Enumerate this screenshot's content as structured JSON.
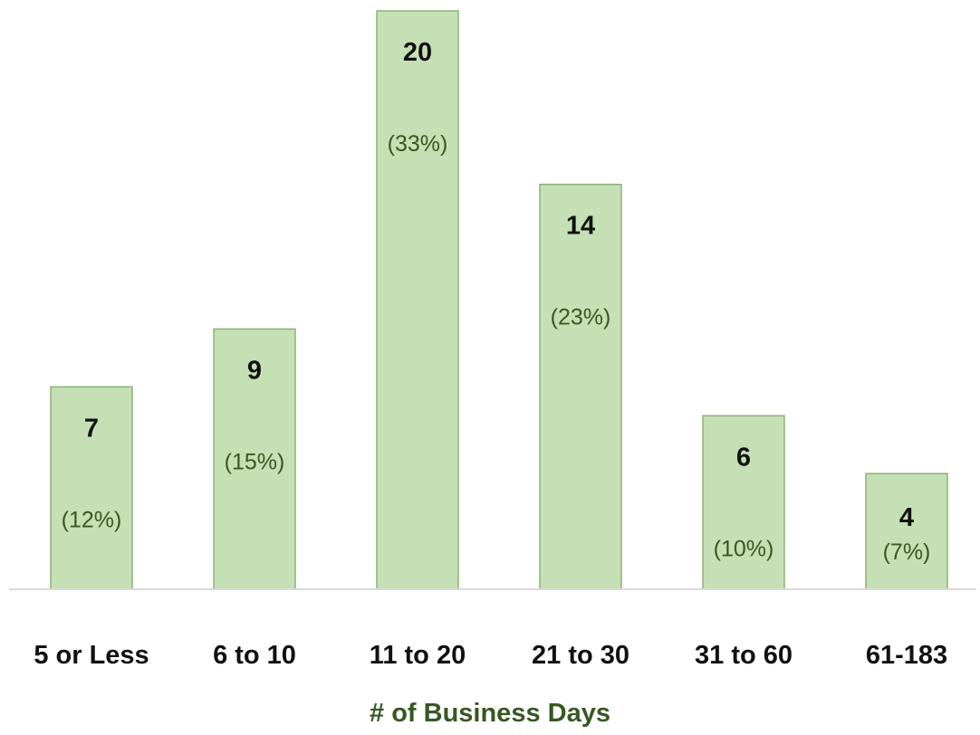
{
  "chart_data": {
    "type": "bar",
    "categories": [
      "5 or Less",
      "6 to 10",
      "11 to 20",
      "21 to 30",
      "31 to 60",
      "61-183"
    ],
    "values": [
      7,
      9,
      20,
      14,
      6,
      4
    ],
    "percent_labels": [
      "(12%)",
      "(15%)",
      "(33%)",
      "(23%)",
      "(10%)",
      "(7%)"
    ],
    "title": "",
    "xlabel": "# of Business Days",
    "ylabel": "",
    "ylim": [
      0,
      20
    ],
    "grid": false,
    "legend": "none",
    "colors": {
      "bar_fill": "#c5e0b4",
      "bar_stroke": "#8db27a",
      "axis_line": "#d9d9d9",
      "value_text": "#111111",
      "percent_text": "#385723",
      "xlabel_text": "#385723",
      "tick_text": "#111111"
    }
  }
}
